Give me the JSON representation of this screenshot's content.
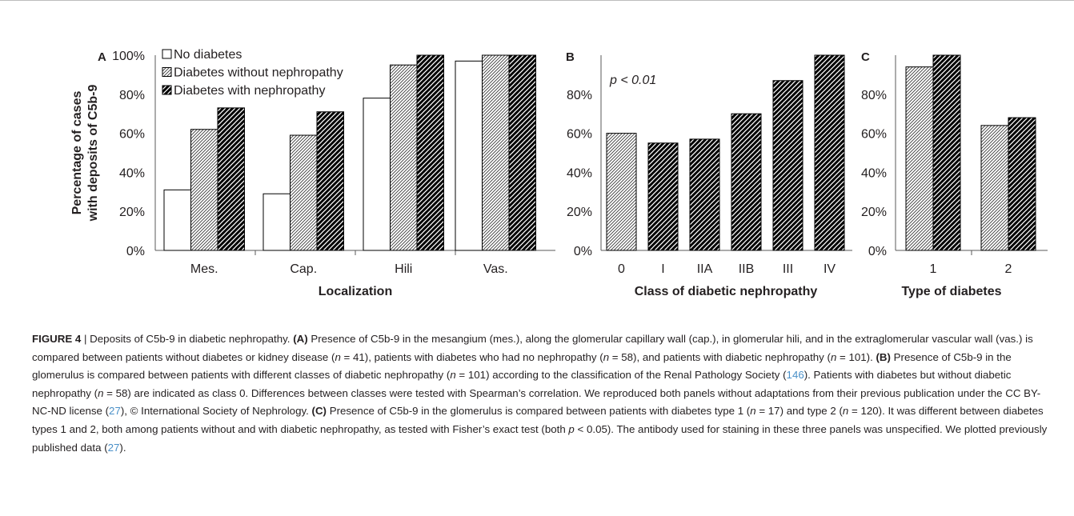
{
  "colors": {
    "text": "#231f20",
    "axis": "#595959",
    "bar_outline": "#000000",
    "citation": "#4a90c8"
  },
  "legend": [
    {
      "label": "No diabetes",
      "pattern": "none"
    },
    {
      "label": "Diabetes without nephropathy",
      "pattern": "light-hatch"
    },
    {
      "label": "Diabetes with nephropathy",
      "pattern": "dark-hatch"
    }
  ],
  "y_axis_label_lines": [
    "Percentage of cases",
    "with deposits of C5b-9"
  ],
  "chart_data": [
    {
      "panel": "A",
      "type": "bar",
      "xlabel": "Localization",
      "ylabel": "Percentage of cases with deposits of C5b-9",
      "ylim": [
        0,
        100
      ],
      "yticks": [
        "0%",
        "20%",
        "40%",
        "60%",
        "80%",
        "100%"
      ],
      "categories": [
        "Mes.",
        "Cap.",
        "Hili",
        "Vas."
      ],
      "series": [
        {
          "name": "No diabetes",
          "pattern": "none",
          "values": [
            31,
            29,
            78,
            97
          ]
        },
        {
          "name": "Diabetes without nephropathy",
          "pattern": "light-hatch",
          "values": [
            62,
            59,
            95,
            100
          ]
        },
        {
          "name": "Diabetes with nephropathy",
          "pattern": "dark-hatch",
          "values": [
            73,
            71,
            100,
            100
          ]
        }
      ]
    },
    {
      "panel": "B",
      "type": "bar",
      "xlabel": "Class of diabetic nephropathy",
      "ylim": [
        0,
        100
      ],
      "yticks": [
        "0%",
        "20%",
        "40%",
        "60%",
        "80%"
      ],
      "annotation": "p < 0.01",
      "categories": [
        "0",
        "I",
        "IIA",
        "IIB",
        "III",
        "IV"
      ],
      "values": [
        60,
        55,
        57,
        70,
        87,
        100
      ],
      "patterns": [
        "light-hatch",
        "dark-hatch",
        "dark-hatch",
        "dark-hatch",
        "dark-hatch",
        "dark-hatch"
      ]
    },
    {
      "panel": "C",
      "type": "bar",
      "xlabel": "Type of diabetes",
      "ylim": [
        0,
        100
      ],
      "yticks": [
        "0%",
        "20%",
        "40%",
        "60%",
        "80%"
      ],
      "categories": [
        "1",
        "2"
      ],
      "series": [
        {
          "pattern": "light-hatch",
          "values": [
            94,
            64
          ]
        },
        {
          "pattern": "dark-hatch",
          "values": [
            100,
            68
          ]
        }
      ]
    }
  ],
  "caption": {
    "figure_label": "FIGURE 4",
    "sep": " | ",
    "runs": [
      {
        "t": "Deposits of C5b-9 in diabetic nephropathy. "
      },
      {
        "t": "(A)",
        "s": "b"
      },
      {
        "t": " Presence of C5b-9 in the mesangium (mes.), along the glomerular capillary wall (cap.), in glomerular hili, and in the extraglomerular vascular wall (vas.) is compared between patients without diabetes or kidney disease ("
      },
      {
        "t": "n",
        "s": "i"
      },
      {
        "t": " = 41), patients with diabetes who had no nephropathy ("
      },
      {
        "t": "n",
        "s": "i"
      },
      {
        "t": " = 58), and patients with diabetic nephropathy ("
      },
      {
        "t": "n",
        "s": "i"
      },
      {
        "t": " = 101). "
      },
      {
        "t": "(B)",
        "s": "b"
      },
      {
        "t": " Presence of C5b-9 in the glomerulus is compared between patients with different classes of diabetic nephropathy ("
      },
      {
        "t": "n",
        "s": "i"
      },
      {
        "t": " = 101) according to the classification of the Renal Pathology Society ("
      },
      {
        "t": "146",
        "s": "c"
      },
      {
        "t": "). Patients with diabetes but without diabetic nephropathy ("
      },
      {
        "t": "n",
        "s": "i"
      },
      {
        "t": " = 58) are indicated as class 0. Differences between classes were tested with Spearman’s correlation. We reproduced both panels without adaptations from their previous publication under the CC BY-NC-ND license ("
      },
      {
        "t": "27",
        "s": "c"
      },
      {
        "t": "), © International Society of Nephrology. "
      },
      {
        "t": "(C)",
        "s": "b"
      },
      {
        "t": " Presence of C5b-9 in the glomerulus is compared between patients with diabetes type 1 ("
      },
      {
        "t": "n",
        "s": "i"
      },
      {
        "t": " = 17) and type 2 ("
      },
      {
        "t": "n",
        "s": "i"
      },
      {
        "t": " = 120). It was different between diabetes types 1 and 2, both among patients without and with diabetic nephropathy, as tested with Fisher’s exact test (both "
      },
      {
        "t": "p",
        "s": "i"
      },
      {
        "t": " < 0.05). The antibody used for staining in these three panels was unspecified. We plotted previously published data ("
      },
      {
        "t": "27",
        "s": "c"
      },
      {
        "t": ")."
      }
    ]
  }
}
